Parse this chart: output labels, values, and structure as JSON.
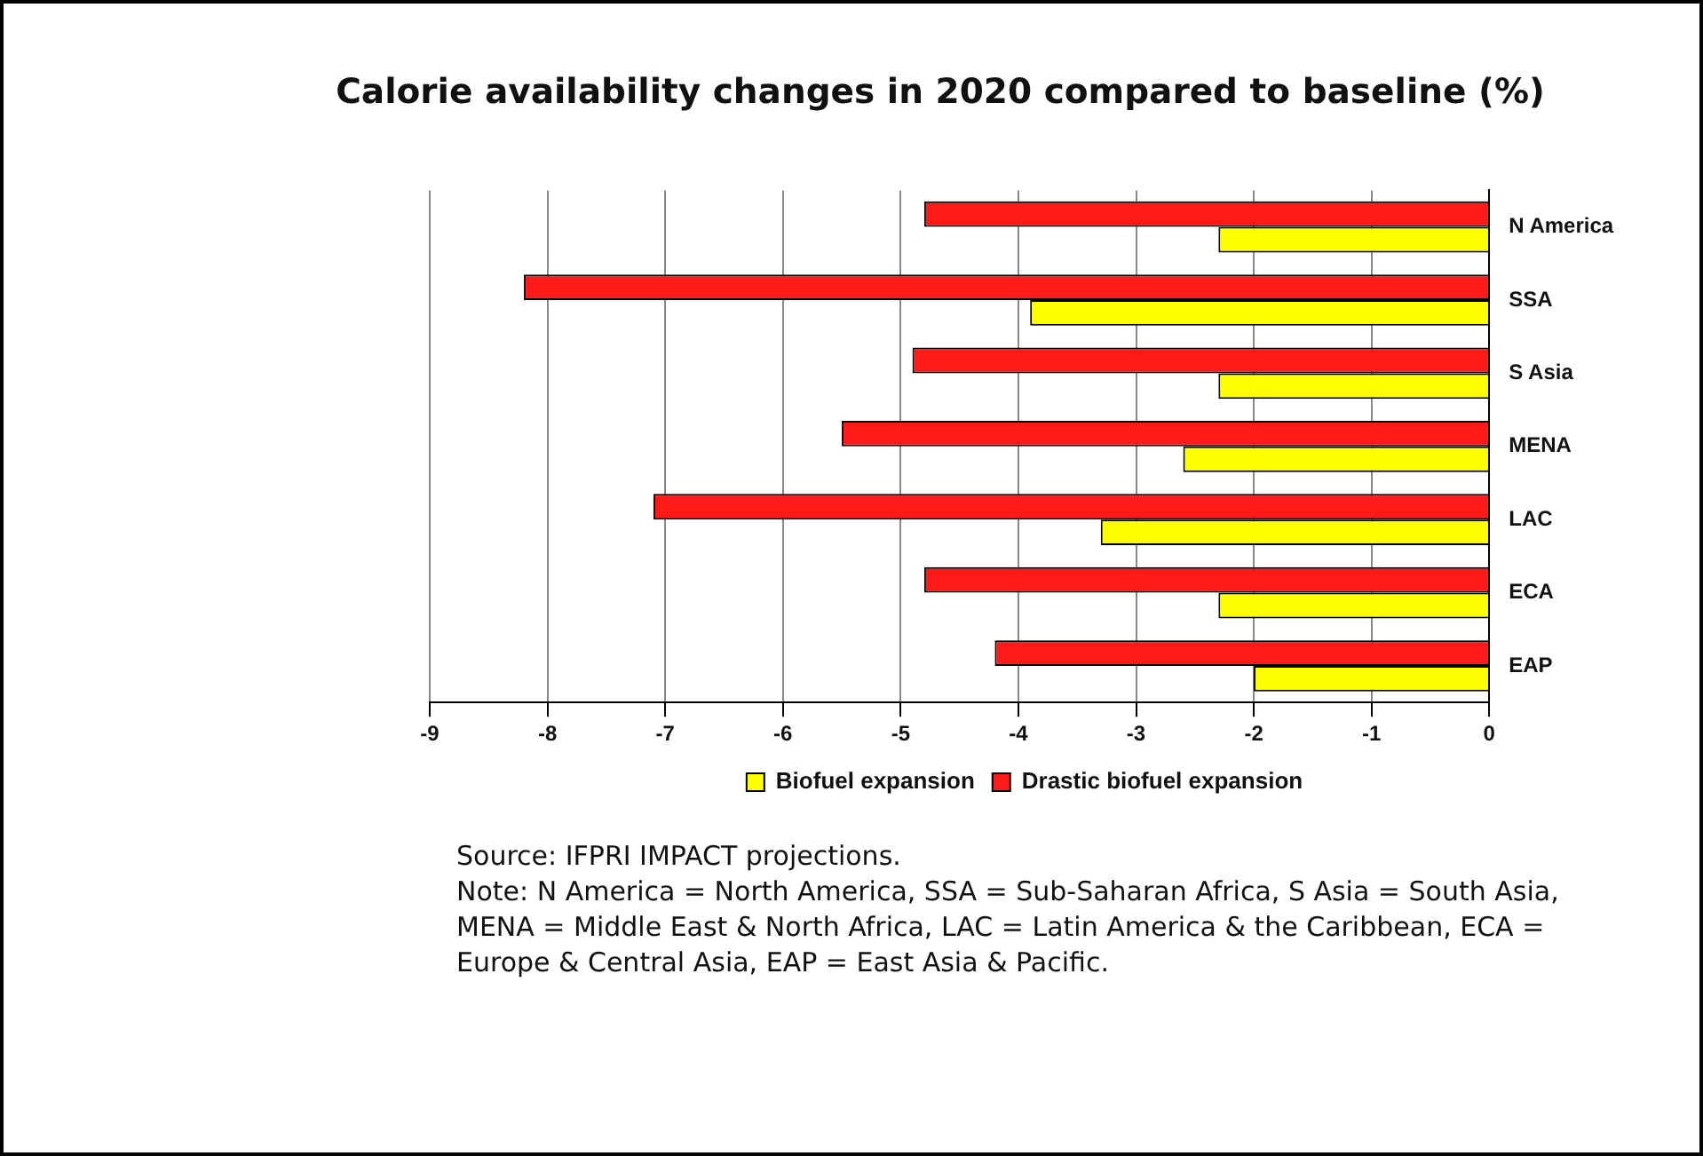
{
  "chart_data": {
    "type": "bar",
    "orientation": "horizontal",
    "title": "Calorie availability changes in 2020 compared to baseline (%)",
    "categories": [
      "N America",
      "SSA",
      "S Asia",
      "MENA",
      "LAC",
      "ECA",
      "EAP"
    ],
    "series": [
      {
        "name": "Biofuel expansion",
        "color": "#ffff00",
        "values": [
          -2.3,
          -3.9,
          -2.3,
          -2.6,
          -3.3,
          -2.3,
          -2.0
        ]
      },
      {
        "name": "Drastic biofuel expansion",
        "color": "#ff1a1a",
        "values": [
          -4.8,
          -8.2,
          -4.9,
          -5.5,
          -7.1,
          -4.8,
          -4.2
        ]
      }
    ],
    "xlim": [
      -9,
      0
    ],
    "xticks": [
      -9,
      -8,
      -7,
      -6,
      -5,
      -4,
      -3,
      -2,
      -1,
      0
    ],
    "grid": "x",
    "legend": "bottom",
    "annotations": [
      "Source: IFPRI IMPACT projections.",
      "Note: N America = North America, SSA = Sub-Saharan Africa, S Asia = South Asia, MENA = Middle East & North Africa, LAC = Latin America & the Caribbean, ECA = Europe & Central Asia, EAP = East Asia & Pacific."
    ]
  }
}
